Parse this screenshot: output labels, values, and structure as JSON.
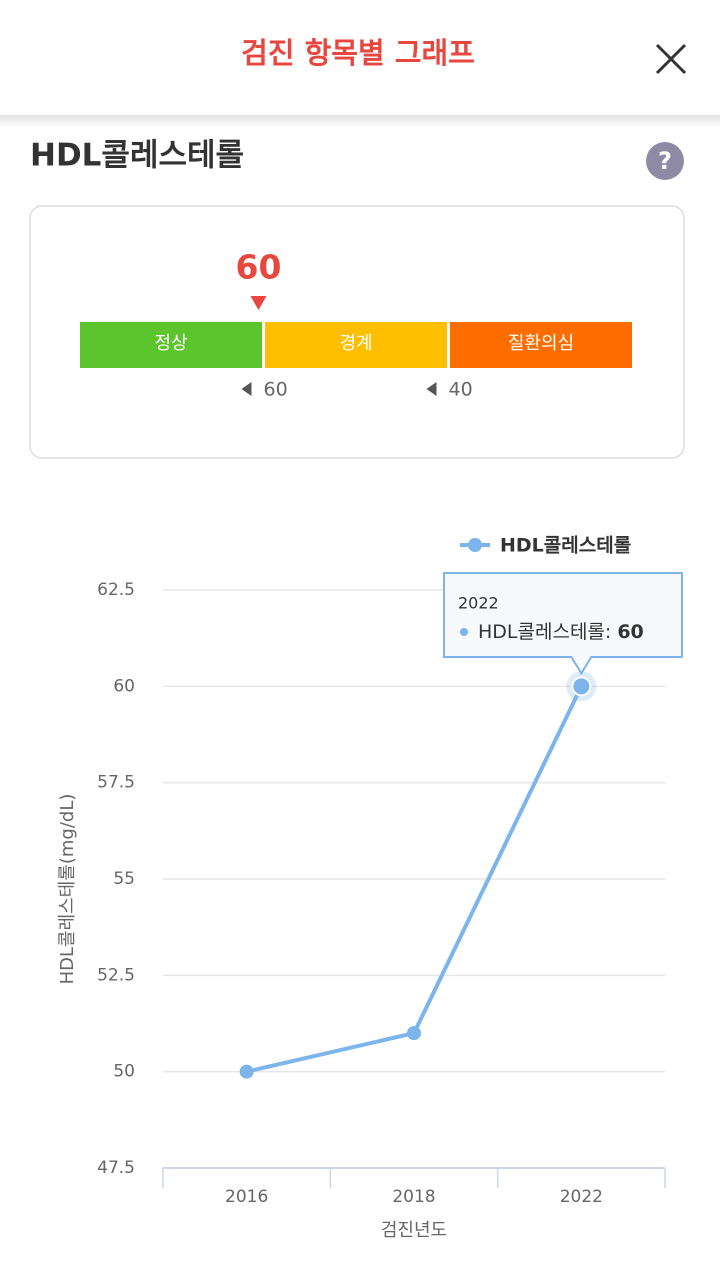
{
  "header": {
    "title": "검진 항목별 그래프"
  },
  "section": {
    "title": "HDL콜레스테롤",
    "help": "?"
  },
  "gauge": {
    "value": 60,
    "segments": [
      "정상",
      "경계",
      "질환의심"
    ],
    "thresholds": [
      60,
      40
    ]
  },
  "chart_data": {
    "type": "line",
    "x_label": "검진년도",
    "y_label": "HDL콜레스테롤(mg/dL)",
    "categories": [
      "2016",
      "2018",
      "2022"
    ],
    "series": [
      {
        "name": "HDL콜레스테롤",
        "color": "#7cb5ec",
        "values": [
          50,
          51,
          60
        ]
      }
    ],
    "ylim": [
      47.5,
      62.5
    ],
    "yticks": [
      47.5,
      50,
      52.5,
      55,
      57.5,
      60,
      62.5
    ],
    "grid": true,
    "legend": "top-right",
    "tooltip": {
      "label": "HDL콜레스테롤:"
    }
  }
}
